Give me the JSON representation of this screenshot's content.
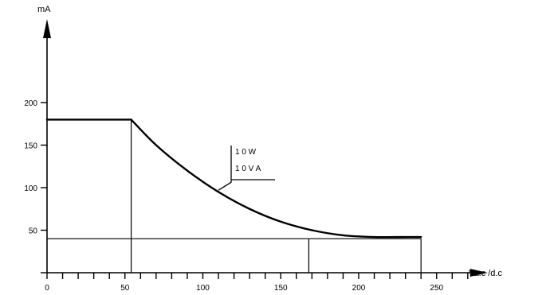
{
  "chart_data": {
    "type": "line",
    "xlabel": "Va.c /d.c",
    "ylabel": "mA",
    "xlim": [
      0,
      270
    ],
    "ylim": [
      0,
      260
    ],
    "x_ticks": [
      0,
      50,
      100,
      150,
      200,
      250
    ],
    "y_ticks": [
      50,
      100,
      150,
      200
    ],
    "x_minor_step": 10,
    "series": [
      {
        "name": "",
        "x": [
          0,
          54,
          70,
          90,
          110,
          130,
          150,
          170,
          190,
          210,
          230,
          240
        ],
        "y": [
          180,
          180,
          150,
          120,
          95,
          75,
          60,
          50,
          44,
          42,
          42,
          42
        ]
      }
    ],
    "annotation": {
      "lines": [
        "1 0 W",
        "1 0 V A"
      ],
      "x": 110,
      "y": 97
    },
    "reference_lines": {
      "max_current": 180,
      "current_floor": 40,
      "voltage_left": 54,
      "voltage_mid": 168,
      "voltage_right": 240
    }
  }
}
